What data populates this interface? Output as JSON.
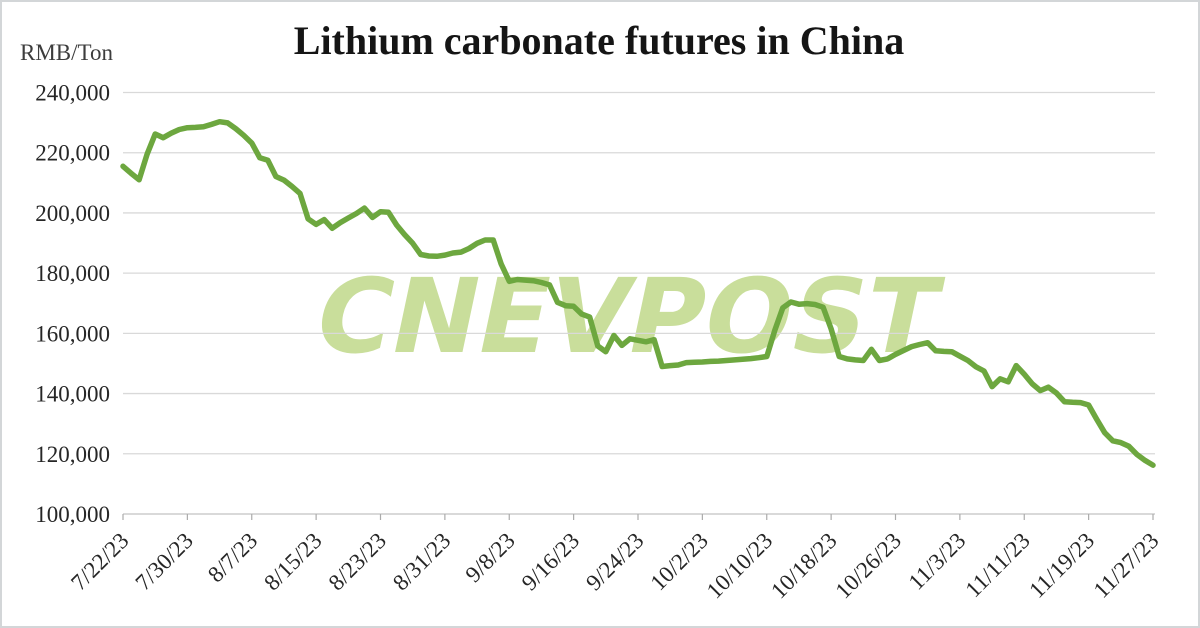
{
  "header": {
    "title": "Lithium carbonate futures in China"
  },
  "watermark": {
    "text": "CNEVPOST",
    "color": "#c9de9b"
  },
  "chart_data": {
    "type": "line",
    "title": "Lithium carbonate futures in China",
    "xlabel": "",
    "ylabel": "RMB/Ton",
    "ylim": [
      100000,
      240000
    ],
    "grid": "horizontal",
    "legend": "none",
    "line_color": "#6da73f",
    "y_tick_labels": [
      "240,000",
      "220,000",
      "200,000",
      "180,000",
      "160,000",
      "140,000",
      "120,000",
      "100,000"
    ],
    "y_tick_values": [
      240000,
      220000,
      200000,
      180000,
      160000,
      140000,
      120000,
      100000
    ],
    "x_tick_labels": [
      "7/22/23",
      "7/30/23",
      "8/7/23",
      "8/15/23",
      "8/23/23",
      "8/31/23",
      "9/8/23",
      "9/16/23",
      "9/24/23",
      "10/2/23",
      "10/10/23",
      "10/18/23",
      "10/26/23",
      "11/3/23",
      "11/11/23",
      "11/19/23",
      "11/27/23"
    ],
    "dates": [
      "7/22/23",
      "7/23/23",
      "7/24/23",
      "7/25/23",
      "7/26/23",
      "7/27/23",
      "7/28/23",
      "7/29/23",
      "7/30/23",
      "7/31/23",
      "8/1/23",
      "8/2/23",
      "8/3/23",
      "8/4/23",
      "8/5/23",
      "8/6/23",
      "8/7/23",
      "8/8/23",
      "8/9/23",
      "8/10/23",
      "8/11/23",
      "8/12/23",
      "8/13/23",
      "8/14/23",
      "8/15/23",
      "8/16/23",
      "8/17/23",
      "8/18/23",
      "8/19/23",
      "8/20/23",
      "8/21/23",
      "8/22/23",
      "8/23/23",
      "8/24/23",
      "8/25/23",
      "8/26/23",
      "8/27/23",
      "8/28/23",
      "8/29/23",
      "8/30/23",
      "8/31/23",
      "9/1/23",
      "9/2/23",
      "9/3/23",
      "9/4/23",
      "9/5/23",
      "9/6/23",
      "9/7/23",
      "9/8/23",
      "9/9/23",
      "9/10/23",
      "9/11/23",
      "9/12/23",
      "9/13/23",
      "9/14/23",
      "9/15/23",
      "9/16/23",
      "9/17/23",
      "9/18/23",
      "9/19/23",
      "9/20/23",
      "9/21/23",
      "9/22/23",
      "9/23/23",
      "9/24/23",
      "9/25/23",
      "9/26/23",
      "9/27/23",
      "9/28/23",
      "9/29/23",
      "9/30/23",
      "10/1/23",
      "10/2/23",
      "10/3/23",
      "10/4/23",
      "10/5/23",
      "10/6/23",
      "10/7/23",
      "10/8/23",
      "10/9/23",
      "10/10/23",
      "10/11/23",
      "10/12/23",
      "10/13/23",
      "10/14/23",
      "10/15/23",
      "10/16/23",
      "10/17/23",
      "10/18/23",
      "10/19/23",
      "10/20/23",
      "10/21/23",
      "10/22/23",
      "10/23/23",
      "10/24/23",
      "10/25/23",
      "10/26/23",
      "10/27/23",
      "10/28/23",
      "10/29/23",
      "10/30/23",
      "10/31/23",
      "11/1/23",
      "11/2/23",
      "11/3/23",
      "11/4/23",
      "11/5/23",
      "11/6/23",
      "11/7/23",
      "11/8/23",
      "11/9/23",
      "11/10/23",
      "11/11/23",
      "11/12/23",
      "11/13/23",
      "11/14/23",
      "11/15/23",
      "11/16/23",
      "11/17/23",
      "11/18/23",
      "11/19/23",
      "11/20/23",
      "11/21/23",
      "11/22/23",
      "11/23/23",
      "11/24/23",
      "11/25/23",
      "11/26/23",
      "11/27/23"
    ],
    "values": [
      215500,
      213200,
      211000,
      219500,
      226200,
      225000,
      226500,
      227700,
      228300,
      228400,
      228600,
      229400,
      230300,
      229900,
      228000,
      225800,
      223200,
      218300,
      217500,
      212100,
      210900,
      208800,
      206500,
      198000,
      196200,
      197800,
      194900,
      196800,
      198300,
      199800,
      201600,
      198500,
      200400,
      200200,
      196000,
      192800,
      189900,
      186200,
      185700,
      185600,
      186000,
      186700,
      187000,
      188200,
      189900,
      191000,
      191000,
      183000,
      177300,
      177900,
      177700,
      177500,
      176900,
      176100,
      170300,
      169200,
      169000,
      166400,
      165400,
      155800,
      153900,
      159300,
      156000,
      158200,
      157700,
      157200,
      157900,
      149000,
      149300,
      149500,
      150300,
      150400,
      150500,
      150700,
      150800,
      151000,
      151200,
      151400,
      151600,
      151900,
      152300,
      161000,
      168500,
      170400,
      169700,
      169900,
      169600,
      168700,
      161500,
      152300,
      151500,
      151200,
      151000,
      154700,
      151000,
      151500,
      153000,
      154300,
      155600,
      156300,
      156900,
      154200,
      154000,
      153900,
      152400,
      151000,
      148900,
      147500,
      142300,
      144900,
      143900,
      149300,
      146400,
      143200,
      141000,
      142100,
      140200,
      137300,
      137100,
      137000,
      136200,
      131500,
      127000,
      124300,
      123700,
      122500,
      119800,
      117800,
      116200
    ]
  }
}
